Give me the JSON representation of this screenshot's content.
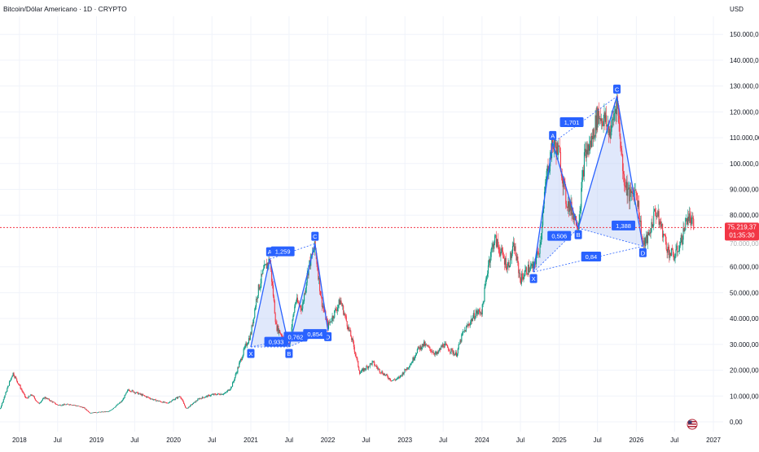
{
  "header": {
    "symbol_title": "Bitcoin/Dólar Americano · 1D · CRYPTO"
  },
  "price_axis": {
    "currency": "USD",
    "current_price_label": "75.219,37",
    "countdown_label": "01:35:30",
    "partially_hidden_tick": "70.000,00"
  },
  "colors": {
    "background": "#ffffff",
    "grid": "#f0f3fa",
    "candle_up": "#089981",
    "candle_down": "#f23645",
    "pattern_stroke": "#2962ff",
    "pattern_fill": "#bbcdf7",
    "label_bg": "#2962ff",
    "label_text": "#ffffff",
    "price_line": "#f23645",
    "price_badge": "#f23645",
    "axis_text": "#131722"
  },
  "chart_data": {
    "type": "candlestick",
    "title": "Bitcoin/Dólar Americano · 1D · CRYPTO",
    "xlabel": "",
    "ylabel": "",
    "ylim": [
      0,
      157000
    ],
    "y_scale": "linear",
    "grid": true,
    "y_ticks": [
      {
        "value": 0,
        "label": "0,00"
      },
      {
        "value": 10000,
        "label": "10.000,00"
      },
      {
        "value": 20000,
        "label": "20.000,00"
      },
      {
        "value": 30000,
        "label": "30.000,00"
      },
      {
        "value": 40000,
        "label": "40.000,00"
      },
      {
        "value": 50000,
        "label": "50.000,00"
      },
      {
        "value": 60000,
        "label": "60.000,00"
      },
      {
        "value": 80000,
        "label": "80.000,00"
      },
      {
        "value": 90000,
        "label": "90.000,00"
      },
      {
        "value": 100000,
        "label": "100.000,00"
      },
      {
        "value": 110000,
        "label": "110.000,00"
      },
      {
        "value": 120000,
        "label": "120.000,00"
      },
      {
        "value": 130000,
        "label": "130.000,00"
      },
      {
        "value": 140000,
        "label": "140.000,00"
      },
      {
        "value": 150000,
        "label": "150.000,00"
      }
    ],
    "x_ticks": [
      {
        "value": "2018-01",
        "label": "2018"
      },
      {
        "value": "2018-07",
        "label": "Jul"
      },
      {
        "value": "2019-01",
        "label": "2019"
      },
      {
        "value": "2019-07",
        "label": "Jul"
      },
      {
        "value": "2020-01",
        "label": "2020"
      },
      {
        "value": "2020-07",
        "label": "Jul"
      },
      {
        "value": "2021-01",
        "label": "2021"
      },
      {
        "value": "2021-07",
        "label": "Jul"
      },
      {
        "value": "2022-01",
        "label": "2022"
      },
      {
        "value": "2022-07",
        "label": "Jul"
      },
      {
        "value": "2023-01",
        "label": "2023"
      },
      {
        "value": "2023-07",
        "label": "Jul"
      },
      {
        "value": "2024-01",
        "label": "2024"
      },
      {
        "value": "2024-07",
        "label": "Jul"
      },
      {
        "value": "2025-01",
        "label": "2025"
      },
      {
        "value": "2025-07",
        "label": "Jul"
      },
      {
        "value": "2026-01",
        "label": "2026"
      },
      {
        "value": "2026-07",
        "label": "Jul"
      },
      {
        "value": "2027-01",
        "label": "2027"
      }
    ],
    "price_path": [
      [
        "2017-07",
        2500
      ],
      [
        "2017-10",
        5000
      ],
      [
        "2017-12",
        19000
      ],
      [
        "2018-01",
        14000
      ],
      [
        "2018-02",
        9000
      ],
      [
        "2018-03",
        10500
      ],
      [
        "2018-04",
        7000
      ],
      [
        "2018-05",
        9500
      ],
      [
        "2018-07",
        6500
      ],
      [
        "2018-09",
        6800
      ],
      [
        "2018-11",
        5500
      ],
      [
        "2018-12",
        3500
      ],
      [
        "2019-03",
        4000
      ],
      [
        "2019-05",
        8000
      ],
      [
        "2019-06",
        12500
      ],
      [
        "2019-08",
        10500
      ],
      [
        "2019-10",
        8500
      ],
      [
        "2019-12",
        7200
      ],
      [
        "2020-02",
        10000
      ],
      [
        "2020-03",
        5000
      ],
      [
        "2020-05",
        9000
      ],
      [
        "2020-07",
        10500
      ],
      [
        "2020-09",
        11000
      ],
      [
        "2020-10",
        13500
      ],
      [
        "2020-12",
        28000
      ],
      [
        "2021-01",
        34000
      ],
      [
        "2021-02",
        50000
      ],
      [
        "2021-03",
        58000
      ],
      [
        "2021-04",
        63000
      ],
      [
        "2021-05",
        37000
      ],
      [
        "2021-06",
        33000
      ],
      [
        "2021-07",
        30000
      ],
      [
        "2021-08",
        47000
      ],
      [
        "2021-09",
        44000
      ],
      [
        "2021-10",
        60000
      ],
      [
        "2021-11",
        68000
      ],
      [
        "2021-12",
        47000
      ],
      [
        "2022-01",
        37000
      ],
      [
        "2022-03",
        47000
      ],
      [
        "2022-05",
        30000
      ],
      [
        "2022-06",
        19000
      ],
      [
        "2022-08",
        23000
      ],
      [
        "2022-09",
        20000
      ],
      [
        "2022-11",
        16000
      ],
      [
        "2022-12",
        16800
      ],
      [
        "2023-02",
        23000
      ],
      [
        "2023-03",
        28000
      ],
      [
        "2023-04",
        30000
      ],
      [
        "2023-06",
        26000
      ],
      [
        "2023-07",
        30000
      ],
      [
        "2023-09",
        26000
      ],
      [
        "2023-10",
        34000
      ],
      [
        "2023-12",
        42000
      ],
      [
        "2024-01",
        43000
      ],
      [
        "2024-02",
        62000
      ],
      [
        "2024-03",
        71000
      ],
      [
        "2024-05",
        60000
      ],
      [
        "2024-06",
        68000
      ],
      [
        "2024-07",
        55000
      ],
      [
        "2024-08",
        59000
      ],
      [
        "2024-09",
        60000
      ],
      [
        "2024-10",
        68000
      ],
      [
        "2024-11",
        95000
      ],
      [
        "2024-12",
        108000
      ],
      [
        "2025-01",
        104000
      ],
      [
        "2025-02",
        86000
      ],
      [
        "2025-03",
        82000
      ],
      [
        "2025-04",
        76000
      ],
      [
        "2025-05",
        103000
      ],
      [
        "2025-06",
        108000
      ],
      [
        "2025-07",
        119000
      ],
      [
        "2025-08",
        117000
      ],
      [
        "2025-09",
        112000
      ],
      [
        "2025-10",
        125000
      ],
      [
        "2025-11",
        95000
      ],
      [
        "2025-12",
        87000
      ],
      [
        "2026-01",
        90000
      ],
      [
        "2026-02",
        68000
      ],
      [
        "2026-03",
        72000
      ],
      [
        "2026-04",
        82000
      ],
      [
        "2026-05",
        75000
      ],
      [
        "2026-06",
        66000
      ],
      [
        "2026-07",
        64000
      ],
      [
        "2026-08",
        70000
      ],
      [
        "2026-09",
        80000
      ],
      [
        "2026-10",
        75219.37
      ]
    ],
    "annotations": [
      {
        "name": "harmonic-pattern-2021",
        "points": [
          {
            "label": "X",
            "date": "2021-01",
            "value": 29000
          },
          {
            "label": "A",
            "date": "2021-04",
            "value": 63000
          },
          {
            "label": "B",
            "date": "2021-07",
            "value": 29000
          },
          {
            "label": "C",
            "date": "2021-11",
            "value": 69000
          },
          {
            "label": "D",
            "date": "2022-01",
            "value": 35500
          }
        ],
        "ratios": [
          {
            "label": "0,933",
            "date": "2021-05",
            "value": 31000
          },
          {
            "label": "0,762",
            "date": "2021-08",
            "value": 33000
          },
          {
            "label": "1,259",
            "date": "2021-06",
            "value": 66000
          },
          {
            "label": "0,854",
            "date": "2021-11",
            "value": 34000
          }
        ]
      },
      {
        "name": "harmonic-pattern-2025",
        "points": [
          {
            "label": "X",
            "date": "2024-09",
            "value": 58000
          },
          {
            "label": "A",
            "date": "2024-12",
            "value": 108000
          },
          {
            "label": "B",
            "date": "2025-04",
            "value": 75000
          },
          {
            "label": "C",
            "date": "2025-10",
            "value": 126000
          },
          {
            "label": "D",
            "date": "2026-02",
            "value": 68000
          }
        ],
        "ratios": [
          {
            "label": "0,506",
            "date": "2025-01",
            "value": 72000
          },
          {
            "label": "1,701",
            "date": "2025-03",
            "value": 116000
          },
          {
            "label": "1,388",
            "date": "2025-11",
            "value": 76000
          },
          {
            "label": "0,84",
            "date": "2025-06",
            "value": 64000
          }
        ]
      }
    ],
    "current_price": 75219.37
  }
}
